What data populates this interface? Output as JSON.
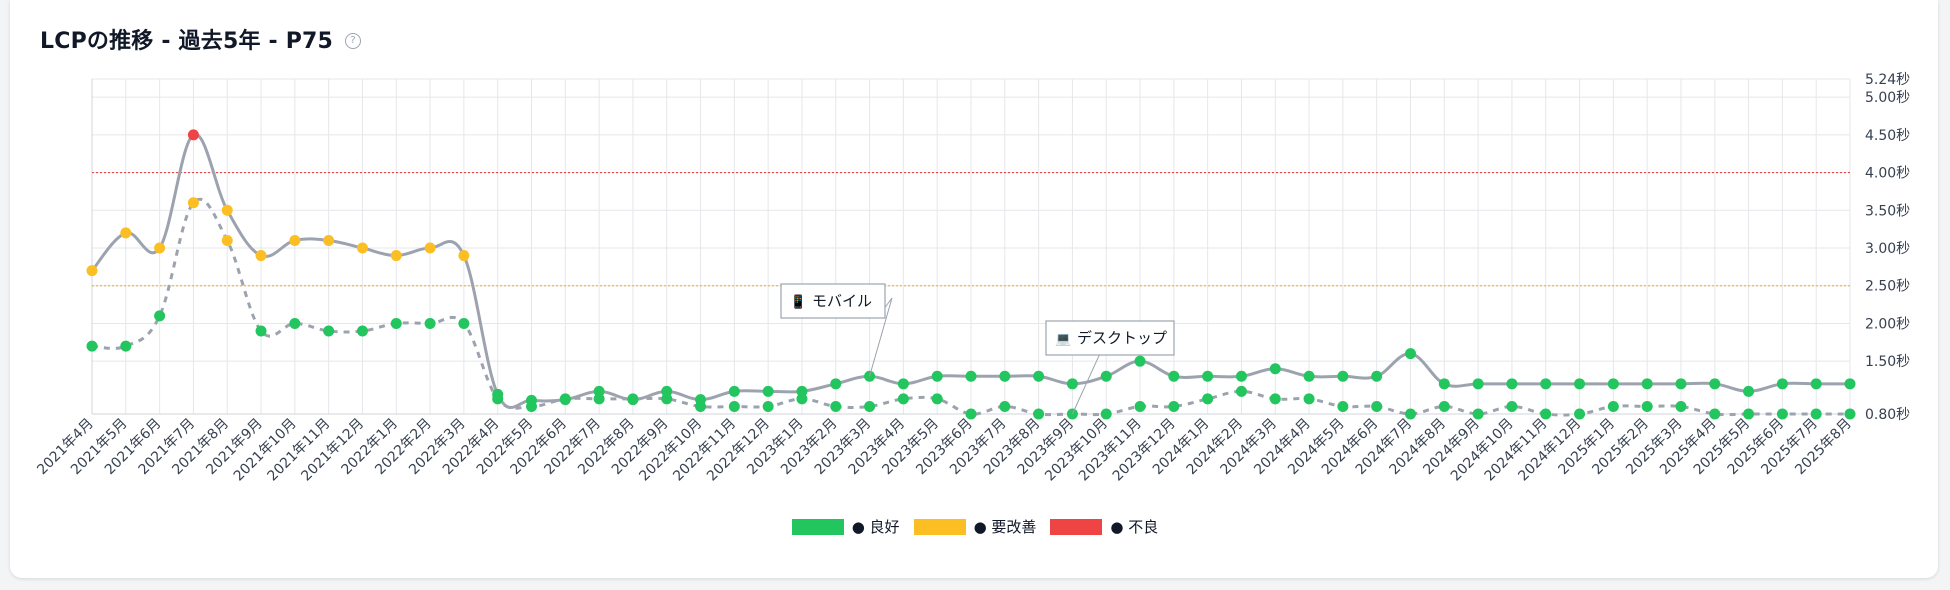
{
  "header": {
    "title": "LCPの推移 - 過去5年 - P75",
    "help_icon_char": "?"
  },
  "legend": [
    {
      "label": "● 良好",
      "color": "#22c55e"
    },
    {
      "label": "● 要改善",
      "color": "#fbbf24"
    },
    {
      "label": "● 不良",
      "color": "#ef4444"
    }
  ],
  "colors": {
    "line": "#9ca3af",
    "good": "#22c55e",
    "needs_improvement": "#fbbf24",
    "poor": "#ef4444",
    "threshold_good": "#f5b73b",
    "threshold_poor": "#ef4444",
    "grid": "#e5e7eb"
  },
  "chart_data": {
    "type": "line",
    "title": "LCPの推移 - 過去5年 - P75",
    "categories": [
      "2021年4月",
      "2021年5月",
      "2021年6月",
      "2021年7月",
      "2021年8月",
      "2021年9月",
      "2021年10月",
      "2021年11月",
      "2021年12月",
      "2022年1月",
      "2022年2月",
      "2022年3月",
      "2022年4月",
      "2022年5月",
      "2022年6月",
      "2022年7月",
      "2022年8月",
      "2022年9月",
      "2022年10月",
      "2022年11月",
      "2022年12月",
      "2023年1月",
      "2023年2月",
      "2023年3月",
      "2023年4月",
      "2023年5月",
      "2023年6月",
      "2023年7月",
      "2023年8月",
      "2023年9月",
      "2023年10月",
      "2023年11月",
      "2023年12月",
      "2024年1月",
      "2024年2月",
      "2024年3月",
      "2024年4月",
      "2024年5月",
      "2024年6月",
      "2024年7月",
      "2024年8月",
      "2024年9月",
      "2024年10月",
      "2024年11月",
      "2024年12月",
      "2025年1月",
      "2025年2月",
      "2025年3月",
      "2025年4月",
      "2025年5月",
      "2025年6月",
      "2025年7月",
      "2025年8月"
    ],
    "y_ticks": [
      {
        "value": 5.24,
        "label": "5.24秒"
      },
      {
        "value": 5.0,
        "label": "5.00秒"
      },
      {
        "value": 4.5,
        "label": "4.50秒"
      },
      {
        "value": 4.0,
        "label": "4.00秒"
      },
      {
        "value": 3.5,
        "label": "3.50秒"
      },
      {
        "value": 3.0,
        "label": "3.00秒"
      },
      {
        "value": 2.5,
        "label": "2.50秒"
      },
      {
        "value": 2.0,
        "label": "2.00秒"
      },
      {
        "value": 1.5,
        "label": "1.50秒"
      },
      {
        "value": 0.8,
        "label": "0.80秒"
      }
    ],
    "ylim": [
      0.8,
      5.24
    ],
    "thresholds": [
      {
        "value": 2.5,
        "status": "needs_improvement"
      },
      {
        "value": 4.0,
        "status": "poor"
      }
    ],
    "series": [
      {
        "name": "モバイル",
        "icon": "📱",
        "line_style": "solid",
        "annotation_index": 23,
        "values": [
          2.7,
          3.2,
          3.0,
          4.5,
          3.5,
          2.9,
          3.1,
          3.1,
          3.0,
          2.9,
          3.0,
          2.9,
          1.06,
          0.98,
          0.99,
          1.1,
          0.99,
          1.1,
          0.99,
          1.1,
          1.1,
          1.1,
          1.2,
          1.3,
          1.2,
          1.3,
          1.3,
          1.3,
          1.3,
          1.2,
          1.3,
          1.5,
          1.3,
          1.3,
          1.3,
          1.4,
          1.3,
          1.3,
          1.3,
          1.6,
          1.2,
          1.2,
          1.2,
          1.2,
          1.2,
          1.2,
          1.2,
          1.2,
          1.2,
          1.1,
          1.2,
          1.2,
          1.2
        ]
      },
      {
        "name": "デスクトップ",
        "icon": "💻",
        "line_style": "dashed",
        "annotation_index": 29,
        "values": [
          1.7,
          1.7,
          2.1,
          3.6,
          3.1,
          1.9,
          2.0,
          1.9,
          1.9,
          2.0,
          2.0,
          2.0,
          1.0,
          0.9,
          1.0,
          1.0,
          1.0,
          1.0,
          0.9,
          0.9,
          0.9,
          1.0,
          0.9,
          0.9,
          1.0,
          1.0,
          0.8,
          0.9,
          0.8,
          0.8,
          0.8,
          0.9,
          0.9,
          1.0,
          1.1,
          1.0,
          1.0,
          0.9,
          0.9,
          0.8,
          0.9,
          0.8,
          0.9,
          0.8,
          0.8,
          0.9,
          0.9,
          0.9,
          0.8,
          0.8,
          0.8,
          0.8,
          0.8
        ]
      }
    ],
    "legend_position": "bottom-center",
    "grid": true
  }
}
